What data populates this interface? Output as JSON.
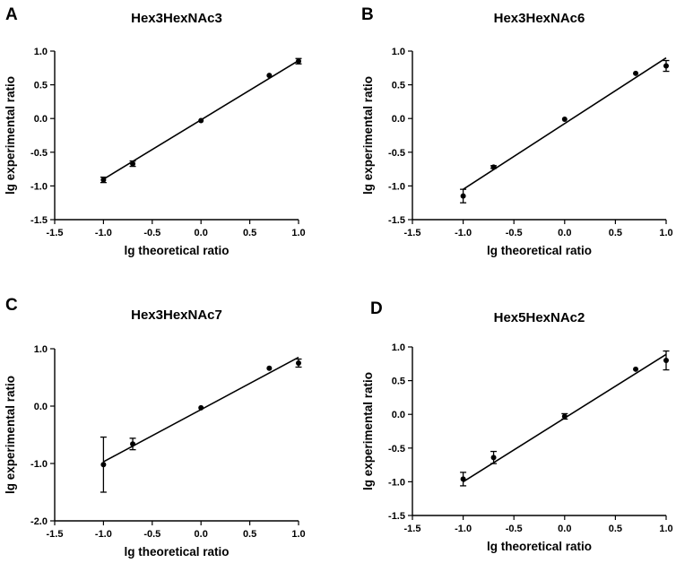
{
  "chart_data": [
    {
      "type": "scatter",
      "panel": "A",
      "title": "Hex3HexNAc3",
      "xlabel": "lg theoretical ratio",
      "ylabel": "lg experimental ratio",
      "xlim": [
        -1.5,
        1.0
      ],
      "ylim": [
        -1.5,
        1.0
      ],
      "xticks": [
        -1.5,
        -1.0,
        -0.5,
        0.0,
        0.5,
        1.0
      ],
      "yticks": [
        -1.5,
        -1.0,
        -0.5,
        0.0,
        0.5,
        1.0
      ],
      "xtick_labels": [
        "-1.5",
        "-1.0",
        "-0.5",
        "0.0",
        "0.5",
        "1.0"
      ],
      "ytick_labels": [
        "-1.5",
        "-1.0",
        "-0.5",
        "0.0",
        "0.5",
        "1.0"
      ],
      "points": [
        {
          "x": -1.0,
          "y": -0.91,
          "err": 0.04
        },
        {
          "x": -0.7,
          "y": -0.67,
          "err": 0.04
        },
        {
          "x": 0.0,
          "y": -0.03,
          "err": 0.01
        },
        {
          "x": 0.7,
          "y": 0.64,
          "err": 0.01
        },
        {
          "x": 1.0,
          "y": 0.85,
          "err": 0.04
        }
      ],
      "fit": {
        "x1": -1.0,
        "y1": -0.9,
        "x2": 1.0,
        "y2": 0.86
      }
    },
    {
      "type": "scatter",
      "panel": "B",
      "title": "Hex3HexNAc6",
      "xlabel": "lg theoretical ratio",
      "ylabel": "lg experimental ratio",
      "xlim": [
        -1.5,
        1.0
      ],
      "ylim": [
        -1.5,
        1.0
      ],
      "xticks": [
        -1.5,
        -1.0,
        -0.5,
        0.0,
        0.5,
        1.0
      ],
      "yticks": [
        -1.5,
        -1.0,
        -0.5,
        0.0,
        0.5,
        1.0
      ],
      "xtick_labels": [
        "-1.5",
        "-1.0",
        "-0.5",
        "0.0",
        "0.5",
        "1.0"
      ],
      "ytick_labels": [
        "-1.5",
        "-1.0",
        "-0.5",
        "0.0",
        "0.5",
        "1.0"
      ],
      "points": [
        {
          "x": -1.0,
          "y": -1.15,
          "err": 0.1
        },
        {
          "x": -0.7,
          "y": -0.72,
          "err": 0.02
        },
        {
          "x": 0.0,
          "y": -0.01,
          "err": 0.01
        },
        {
          "x": 0.7,
          "y": 0.67,
          "err": 0.01
        },
        {
          "x": 1.0,
          "y": 0.78,
          "err": 0.08
        }
      ],
      "fit": {
        "x1": -1.0,
        "y1": -1.05,
        "x2": 1.0,
        "y2": 0.9
      }
    },
    {
      "type": "scatter",
      "panel": "C",
      "title": "Hex3HexNAc7",
      "xlabel": "lg theoretical ratio",
      "ylabel": "lg experimental ratio",
      "xlim": [
        -1.5,
        1.0
      ],
      "ylim": [
        -2.0,
        1.0
      ],
      "xticks": [
        -1.5,
        -1.0,
        -0.5,
        0.0,
        0.5,
        1.0
      ],
      "yticks": [
        -2.0,
        -1.0,
        0.0,
        1.0
      ],
      "xtick_labels": [
        "-1.5",
        "-1.0",
        "-0.5",
        "0.0",
        "0.5",
        "1.0"
      ],
      "ytick_labels": [
        "-2.0",
        "-1.0",
        "0.0",
        "1.0"
      ],
      "points": [
        {
          "x": -1.0,
          "y": -1.02,
          "err": 0.48
        },
        {
          "x": -0.7,
          "y": -0.66,
          "err": 0.1
        },
        {
          "x": 0.0,
          "y": -0.03,
          "err": 0.01
        },
        {
          "x": 0.7,
          "y": 0.66,
          "err": 0.01
        },
        {
          "x": 1.0,
          "y": 0.75,
          "err": 0.07
        }
      ],
      "fit": {
        "x1": -1.0,
        "y1": -0.97,
        "x2": 1.0,
        "y2": 0.85
      }
    },
    {
      "type": "scatter",
      "panel": "D",
      "title": "Hex5HexNAc2",
      "xlabel": "lg theoretical ratio",
      "ylabel": "lg experimental ratio",
      "xlim": [
        -1.5,
        1.0
      ],
      "ylim": [
        -1.5,
        1.0
      ],
      "xticks": [
        -1.5,
        -1.0,
        -0.5,
        0.0,
        0.5,
        1.0
      ],
      "yticks": [
        -1.5,
        -1.0,
        -0.5,
        0.0,
        0.5,
        1.0
      ],
      "xtick_labels": [
        "-1.5",
        "-1.0",
        "-0.5",
        "0.0",
        "0.5",
        "1.0"
      ],
      "ytick_labels": [
        "-1.5",
        "-1.0",
        "-0.5",
        "0.0",
        "0.5",
        "1.0"
      ],
      "points": [
        {
          "x": -1.0,
          "y": -0.96,
          "err": 0.1
        },
        {
          "x": -0.7,
          "y": -0.64,
          "err": 0.09
        },
        {
          "x": 0.0,
          "y": -0.03,
          "err": 0.04
        },
        {
          "x": 0.7,
          "y": 0.67,
          "err": 0.01
        },
        {
          "x": 1.0,
          "y": 0.8,
          "err": 0.14
        }
      ],
      "fit": {
        "x1": -1.0,
        "y1": -1.0,
        "x2": 1.0,
        "y2": 0.89
      }
    }
  ]
}
